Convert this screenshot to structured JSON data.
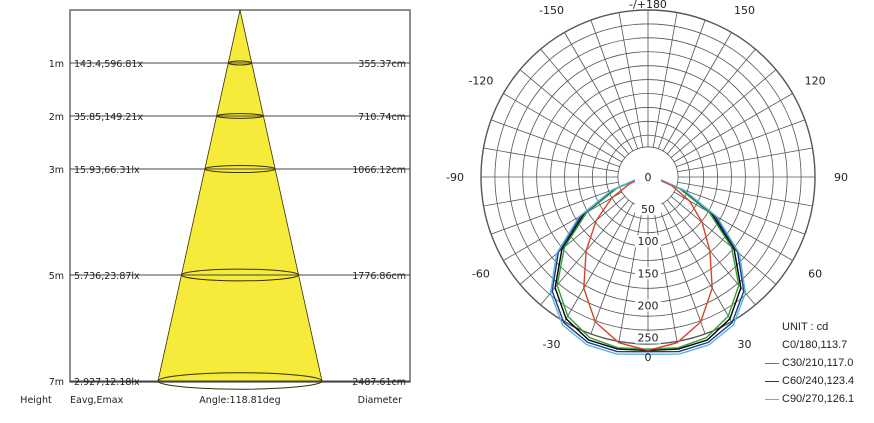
{
  "chart_data": [
    {
      "type": "table",
      "title": "",
      "columns": {
        "height": "Height",
        "illuminance": "Eavg,Emax",
        "angle": "Angle:118.81deg",
        "diameter": "Diameter"
      },
      "rows": [
        {
          "height_label": "1m",
          "height_m": 1,
          "eavg_emax": "143.4,596.81x",
          "diameter": "355.37cm"
        },
        {
          "height_label": "2m",
          "height_m": 2,
          "eavg_emax": "35.85,149.21x",
          "diameter": "710.74cm"
        },
        {
          "height_label": "3m",
          "height_m": 3,
          "eavg_emax": "15.93,66.31lx",
          "diameter": "1066.12cm"
        },
        {
          "height_label": "5m",
          "height_m": 5,
          "eavg_emax": "5.736,23.87lx",
          "diameter": "1776.86cm"
        },
        {
          "height_label": "7m",
          "height_m": 7,
          "eavg_emax": "2.927,12.18lx",
          "diameter": "2487.61cm"
        }
      ],
      "colors": {
        "cone": "#f6ea3a",
        "cone_stroke": "#3a3000",
        "grid": "#444444"
      }
    },
    {
      "type": "polar",
      "title": "",
      "unit_label": "UNIT : cd",
      "angle_labels": [
        {
          "deg": 180,
          "text": "-/+180"
        },
        {
          "deg": -150,
          "text": "-150"
        },
        {
          "deg": 150,
          "text": "150"
        },
        {
          "deg": -120,
          "text": "-120"
        },
        {
          "deg": 120,
          "text": "120"
        },
        {
          "deg": -90,
          "text": "-90"
        },
        {
          "deg": 90,
          "text": "90"
        },
        {
          "deg": -60,
          "text": "-60"
        },
        {
          "deg": 60,
          "text": "60"
        },
        {
          "deg": -30,
          "text": "-30"
        },
        {
          "deg": 30,
          "text": "30"
        },
        {
          "deg": 0,
          "text": "0"
        }
      ],
      "radial_ticks": [
        0,
        50,
        100,
        150,
        200,
        250
      ],
      "rmax": 260,
      "series": [
        {
          "name": "C0/180,113.7",
          "color": "",
          "angles": [
            -90,
            -80,
            -70,
            -60,
            -50,
            -40,
            -30,
            -20,
            -10,
            0,
            10,
            20,
            30,
            40,
            50,
            60,
            70,
            80,
            90
          ],
          "values": [
            0,
            15,
            55,
            115,
            175,
            225,
            255,
            270,
            272,
            270,
            272,
            270,
            255,
            225,
            175,
            115,
            55,
            15,
            0
          ]
        },
        {
          "name": "C30/210,117.0",
          "color": "#2e9e3a",
          "angles": [
            -90,
            -80,
            -70,
            -60,
            -50,
            -40,
            -30,
            -20,
            -10,
            0,
            10,
            20,
            30,
            40,
            50,
            60,
            70,
            80,
            90
          ],
          "values": [
            0,
            14,
            52,
            110,
            170,
            220,
            250,
            266,
            270,
            268,
            270,
            266,
            250,
            220,
            170,
            110,
            52,
            14,
            0
          ]
        },
        {
          "name": "C60/240,123.4",
          "color": "#1a3a8c",
          "angles": [
            -90,
            -80,
            -70,
            -60,
            -50,
            -40,
            -30,
            -20,
            -10,
            0,
            10,
            20,
            30,
            40,
            50,
            60,
            70,
            80,
            90
          ],
          "values": [
            0,
            16,
            58,
            120,
            182,
            232,
            262,
            274,
            276,
            272,
            276,
            274,
            262,
            232,
            182,
            120,
            58,
            16,
            0
          ]
        },
        {
          "name": "C90/270,126.1",
          "color": "#5ab4d6",
          "angles": [
            -90,
            -80,
            -70,
            -60,
            -50,
            -40,
            -30,
            -20,
            -10,
            0,
            10,
            20,
            30,
            40,
            50,
            60,
            70,
            80,
            90
          ],
          "values": [
            0,
            17,
            60,
            124,
            186,
            236,
            266,
            278,
            280,
            276,
            280,
            278,
            266,
            236,
            186,
            124,
            60,
            17,
            0
          ]
        },
        {
          "name": "",
          "color": "#d8432a",
          "angles": [
            -90,
            -80,
            -70,
            -60,
            -50,
            -40,
            -30,
            -20,
            -10,
            0,
            10,
            20,
            30,
            40,
            50,
            60,
            70,
            80,
            90
          ],
          "values": [
            0,
            10,
            30,
            65,
            105,
            150,
            200,
            240,
            262,
            270,
            262,
            240,
            200,
            150,
            110,
            75,
            40,
            12,
            0
          ]
        }
      ],
      "colors": {
        "grid": "#555555"
      }
    }
  ]
}
